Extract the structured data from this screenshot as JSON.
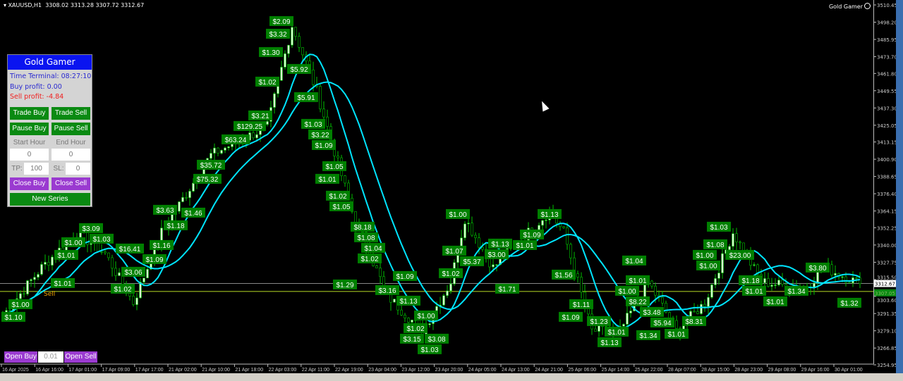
{
  "header": {
    "symbol": "XAUUSD,H1",
    "ohlc": "3308.02 3313.28 3307.72 3312.67"
  },
  "brand": "Gold Gamer",
  "panel": {
    "title": "Gold Gamer",
    "time_terminal": "Time Terminal: 08:27:10",
    "buy_profit": "Buy profit: 0.00",
    "sell_profit": "Sell profit: -4.84",
    "trade_buy": "Trade Buy",
    "trade_sell": "Trade Sell",
    "pause_buy": "Pause Buy",
    "pause_sell": "Pause Sell",
    "start_hour_label": "Start Hour",
    "end_hour_label": "End Hour",
    "start_hour": "0",
    "end_hour": "0",
    "tp_label": "TP:",
    "tp": "100",
    "sl_label": "SL:",
    "sl": "0",
    "close_buy": "Close Buy",
    "close_sell": "Close Sell",
    "new_series": "New Series"
  },
  "order_bar": {
    "open_buy": "Open Buy",
    "lot": "0.01",
    "open_sell": "Open Sell"
  },
  "side_text": "Sell",
  "colors": {
    "bull": "#d8ffd0",
    "bear": "#000000",
    "wick": "#00c000",
    "ma": "#00e5ff",
    "label_bg": "#008000",
    "bid_line": "#9a9a9a",
    "level_line": "#a0c020"
  },
  "chart_data": {
    "type": "candlestick",
    "ylim": [
      3254.95,
      3510.45
    ],
    "y_ticks": [
      "3510.45",
      "3498.20",
      "3485.95",
      "3473.70",
      "3461.80",
      "3449.55",
      "3437.30",
      "3425.05",
      "3413.15",
      "3400.90",
      "3388.65",
      "3376.40",
      "3364.15",
      "3352.25",
      "3340.00",
      "3327.75",
      "3315.50",
      "3303.60",
      "3291.35",
      "3279.10",
      "3266.85",
      "3254.95"
    ],
    "x_ticks": [
      "16 Apr 2025",
      "16 Apr 16:00",
      "17 Apr 01:00",
      "17 Apr 09:00",
      "17 Apr 17:00",
      "21 Apr 02:00",
      "21 Apr 10:00",
      "21 Apr 18:00",
      "22 Apr 03:00",
      "22 Apr 11:00",
      "22 Apr 19:00",
      "23 Apr 04:00",
      "23 Apr 12:00",
      "23 Apr 20:00",
      "24 Apr 05:00",
      "24 Apr 13:00",
      "24 Apr 21:00",
      "25 Apr 06:00",
      "25 Apr 14:00",
      "25 Apr 22:00",
      "28 Apr 07:00",
      "28 Apr 15:00",
      "28 Apr 23:00",
      "29 Apr 08:00",
      "29 Apr 16:00",
      "30 Apr 01:00"
    ],
    "price_path": [
      [
        0,
        3290
      ],
      [
        11,
        3324
      ],
      [
        21,
        3349
      ],
      [
        29,
        3334
      ],
      [
        37,
        3299
      ],
      [
        45,
        3349
      ],
      [
        59,
        3404
      ],
      [
        75,
        3424
      ],
      [
        82,
        3496
      ],
      [
        89,
        3449
      ],
      [
        99,
        3364
      ],
      [
        109,
        3304
      ],
      [
        119,
        3279
      ],
      [
        127,
        3314
      ],
      [
        131,
        3359
      ],
      [
        139,
        3324
      ],
      [
        155,
        3364
      ],
      [
        159,
        3349
      ],
      [
        167,
        3279
      ],
      [
        175,
        3279
      ],
      [
        183,
        3314
      ],
      [
        191,
        3279
      ],
      [
        199,
        3299
      ],
      [
        207,
        3349
      ],
      [
        215,
        3314
      ],
      [
        227,
        3309
      ],
      [
        233,
        3324
      ],
      [
        243,
        3312.67
      ]
    ],
    "bid": {
      "value": 3312.67,
      "label": "3312.67"
    },
    "level": {
      "value": 3307.05,
      "label": "3307.05"
    },
    "labels": [
      [
        "$2.09",
        79,
        3499
      ],
      [
        "$3.32",
        78,
        3490
      ],
      [
        "$1.30",
        76,
        3477
      ],
      [
        "$1.02",
        75,
        3456
      ],
      [
        "$5.92",
        84,
        3465
      ],
      [
        "$5.91",
        86,
        3445
      ],
      [
        "$3.21",
        73,
        3432
      ],
      [
        "$129.25",
        70,
        3425
      ],
      [
        "$63.24",
        66,
        3415
      ],
      [
        "$35.72",
        59,
        3397
      ],
      [
        "$75.32",
        58,
        3387
      ],
      [
        "$1.46",
        54,
        3363
      ],
      [
        "$3.63",
        46,
        3365
      ],
      [
        "$1.18",
        49,
        3354
      ],
      [
        "$1.16",
        45,
        3340
      ],
      [
        "$1.09",
        43,
        3330
      ],
      [
        "$16.41",
        36,
        3335
      ],
      [
        "$3.06",
        37,
        3321
      ],
      [
        "$1.02",
        34,
        3309
      ],
      [
        "$3.09",
        25,
        3352
      ],
      [
        "$1.03",
        28,
        3345
      ],
      [
        "$1.00",
        20,
        3342
      ],
      [
        "$1.01",
        18,
        3333
      ],
      [
        "$1.01",
        17,
        3313
      ],
      [
        "$1.00",
        5,
        3298
      ],
      [
        "$1.10",
        3,
        3289
      ],
      [
        "$1.03",
        88,
        3426
      ],
      [
        "$3.22",
        90,
        3420
      ],
      [
        "$1.09",
        91,
        3411
      ],
      [
        "$1.05",
        94,
        3396
      ],
      [
        "$1.01",
        92,
        3387
      ],
      [
        "$1.02",
        95,
        3375
      ],
      [
        "$1.05",
        96,
        3368
      ],
      [
        "$8.18",
        102,
        3353
      ],
      [
        "$1.08",
        103,
        3348
      ],
      [
        "$1.04",
        105,
        3341
      ],
      [
        "$1.02",
        104,
        3333
      ],
      [
        "$1.29",
        97,
        3312
      ],
      [
        "$3.16",
        109,
        3308
      ],
      [
        "$1.09",
        114,
        3318
      ],
      [
        "$1.13",
        115,
        3305
      ],
      [
        "$1.00",
        120,
        3290
      ],
      [
        "$1.02",
        117,
        3281
      ],
      [
        "$3.08",
        123,
        3284
      ],
      [
        "$1.03",
        121,
        3275
      ],
      [
        "$3.15",
        116,
        3269
      ],
      [
        "$1.00",
        129,
        3362
      ],
      [
        "$1.07",
        128,
        3336
      ],
      [
        "$5.37",
        133,
        3332
      ],
      [
        "$1.02",
        127,
        3320
      ],
      [
        "$1.13",
        141,
        3341
      ],
      [
        "$3.00",
        140,
        3336
      ],
      [
        "$1.01",
        148,
        3340
      ],
      [
        "$1.09",
        150,
        3346
      ],
      [
        "$1.13",
        155,
        3362
      ],
      [
        "$1.71",
        143,
        3309
      ],
      [
        "$1.56",
        159,
        3319
      ],
      [
        "$1.04",
        179,
        3329
      ],
      [
        "$1.01",
        180,
        3315
      ],
      [
        "$1.00",
        177,
        3309
      ],
      [
        "$8.22",
        180,
        3304
      ],
      [
        "$3.48",
        184,
        3296
      ],
      [
        "$5.94",
        187,
        3286
      ],
      [
        "$1.34",
        183,
        3276
      ],
      [
        "$1.01",
        191,
        3277
      ],
      [
        "$8.31",
        196,
        3286
      ],
      [
        "$1.09",
        161,
        3289
      ],
      [
        "$1.11",
        164,
        3298
      ],
      [
        "$1.23",
        169,
        3286
      ],
      [
        "$1.01",
        174,
        3279
      ],
      [
        "$1.13",
        172,
        3272
      ],
      [
        "$1.03",
        203,
        3353
      ],
      [
        "$1.00",
        199,
        3333
      ],
      [
        "$1.00",
        200,
        3328
      ],
      [
        "$1.08",
        202,
        3339
      ],
      [
        "$23.00",
        209,
        3340
      ],
      [
        "$1.18",
        212,
        3315
      ],
      [
        "$1.01",
        213,
        3310
      ],
      [
        "$1.01",
        219,
        3304
      ],
      [
        "$1.34",
        225,
        3301
      ],
      [
        "$3.80",
        231,
        3324
      ],
      [
        "$1.32",
        240,
        3299
      ]
    ]
  }
}
